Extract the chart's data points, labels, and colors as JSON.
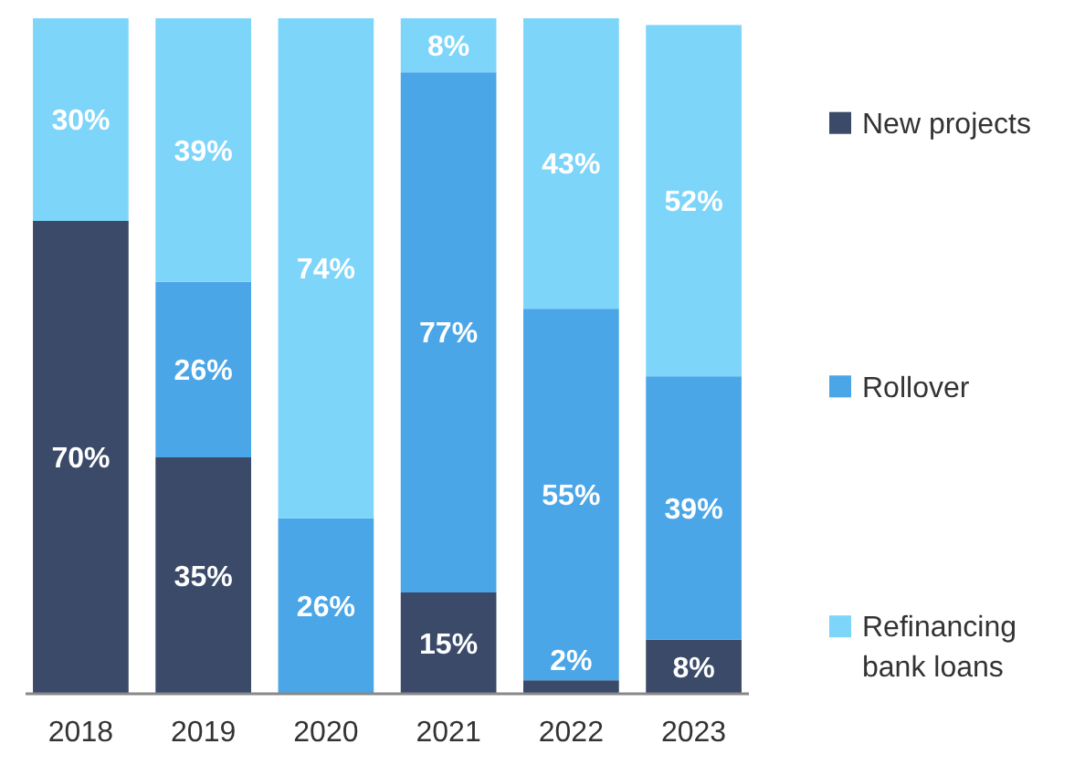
{
  "chart_data": {
    "type": "bar",
    "stacked": true,
    "categories": [
      "2018",
      "2019",
      "2020",
      "2021",
      "2022",
      "2023"
    ],
    "ylim": [
      0,
      100
    ],
    "legend": "right",
    "series": [
      {
        "name": "New projects",
        "color": "#3a4a68",
        "values": [
          70,
          35,
          0,
          15,
          2,
          8
        ],
        "value_labels": [
          "70%",
          "35%",
          null,
          "15%",
          "2%",
          "8%"
        ]
      },
      {
        "name": "Rollover",
        "color": "#4ba6e8",
        "values": [
          0,
          26,
          26,
          77,
          55,
          39
        ],
        "value_labels": [
          null,
          "26%",
          "26%",
          "77%",
          "55%",
          "39%"
        ]
      },
      {
        "name": "Refinancing bank loans",
        "color": "#7dd5fa",
        "values": [
          30,
          39,
          74,
          8,
          43,
          52
        ],
        "value_labels": [
          "30%",
          "39%",
          "74%",
          "8%",
          "43%",
          "52%"
        ]
      }
    ]
  }
}
